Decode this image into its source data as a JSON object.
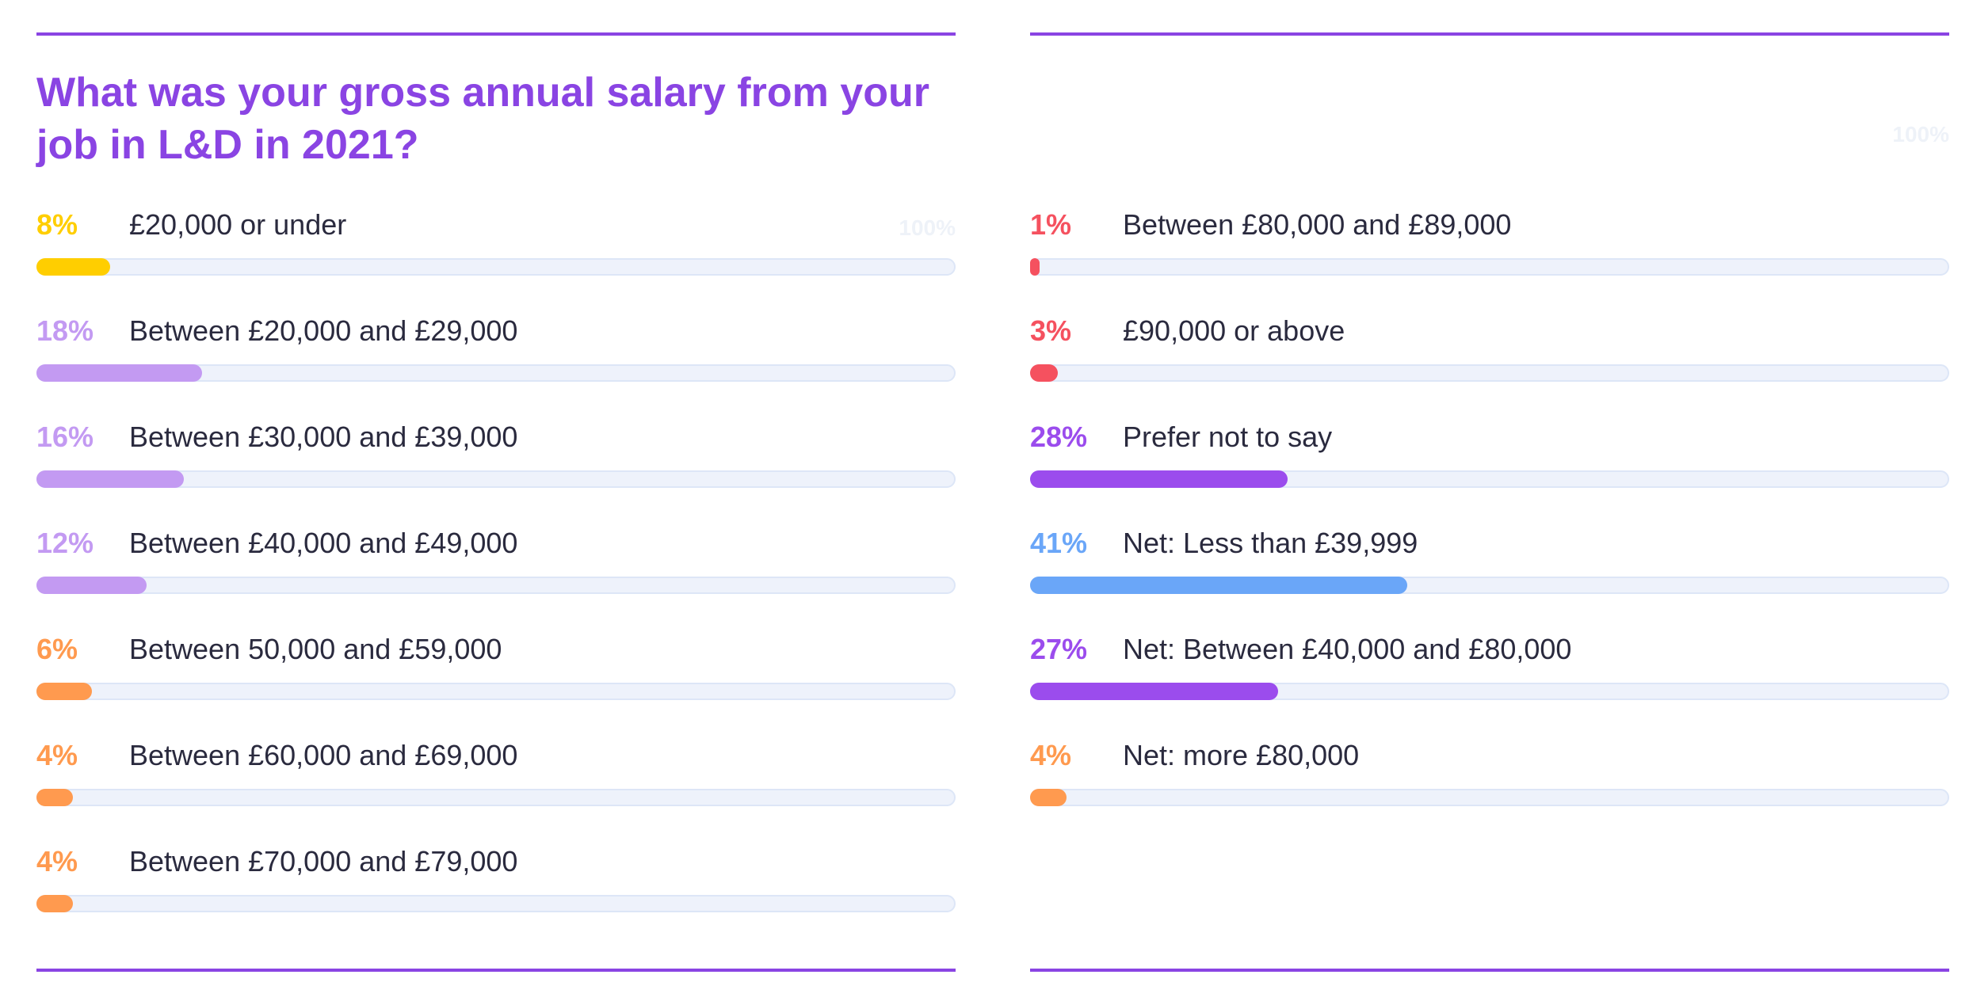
{
  "title": "What was your gross annual salary from your job in L&D in 2021?",
  "scale_label": "100%",
  "colors": {
    "accent": "#8a44e3",
    "yellow": "#ffce00",
    "light_purple": "#c39af2",
    "orange": "#ff9a4f",
    "red": "#f5515f",
    "purple": "#9b4ced",
    "blue": "#6aa6f8",
    "track": "#eef2fb"
  },
  "chart_data": [
    {
      "type": "bar",
      "orientation": "horizontal",
      "title": "What was your gross annual salary from your job in L&D in 2021?",
      "xlim": [
        0,
        100
      ],
      "unit": "%",
      "categories": [
        "£20,000 or under",
        "Between £20,000 and £29,000",
        "Between £30,000 and £39,000",
        "Between £40,000 and £49,000",
        "Between 50,000 and £59,000",
        "Between £60,000 and £69,000",
        "Between £70,000 and £79,000"
      ],
      "values": [
        8,
        18,
        16,
        12,
        6,
        4,
        4
      ],
      "value_labels": [
        "8%",
        "18%",
        "16%",
        "12%",
        "6%",
        "4%",
        "4%"
      ],
      "bar_colors": [
        "#ffce00",
        "#c39af2",
        "#c39af2",
        "#c39af2",
        "#ff9a4f",
        "#ff9a4f",
        "#ff9a4f"
      ]
    },
    {
      "type": "bar",
      "orientation": "horizontal",
      "xlim": [
        0,
        100
      ],
      "unit": "%",
      "categories": [
        "Between £80,000 and £89,000",
        "£90,000 or above",
        "Prefer not to say",
        "Net: Less than £39,999",
        "Net: Between £40,000 and £80,000",
        "Net: more £80,000"
      ],
      "values": [
        1,
        3,
        28,
        41,
        27,
        4
      ],
      "value_labels": [
        "1%",
        "3%",
        "28%",
        "41%",
        "27%",
        "4%"
      ],
      "bar_colors": [
        "#f5515f",
        "#f5515f",
        "#9b4ced",
        "#6aa6f8",
        "#9b4ced",
        "#ff9a4f"
      ]
    }
  ]
}
